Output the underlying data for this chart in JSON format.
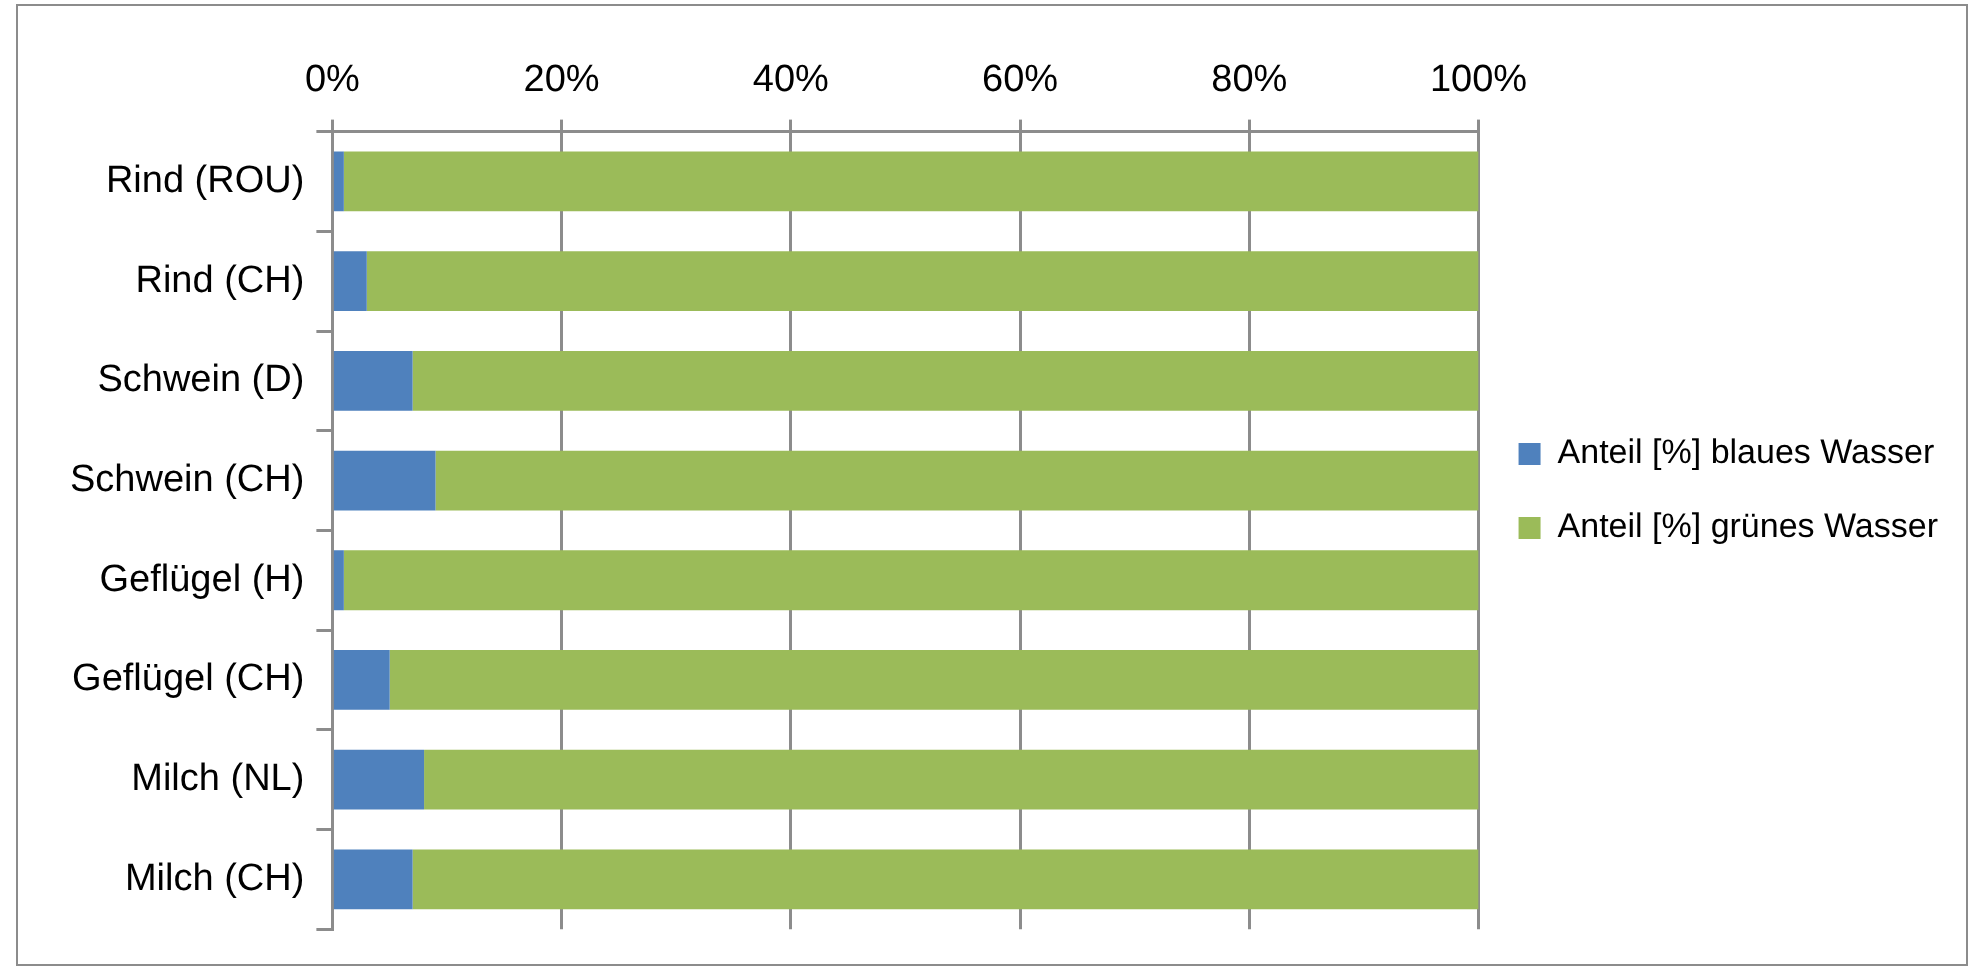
{
  "chart_data": {
    "type": "bar",
    "orientation": "horizontal",
    "stacked": true,
    "categories": [
      "Rind (ROU)",
      "Rind (CH)",
      "Schwein (D)",
      "Schwein (CH)",
      "Geflügel (H)",
      "Geflügel (CH)",
      "Milch (NL)",
      "Milch (CH)"
    ],
    "series": [
      {
        "name": "Anteil [%] blaues Wasser",
        "color": "#4f81bd",
        "values": [
          1,
          3,
          7,
          9,
          1,
          5,
          8,
          7
        ]
      },
      {
        "name": "Anteil [%] grünes Wasser",
        "color": "#9bbb59",
        "values": [
          99,
          97,
          93,
          91,
          99,
          95,
          92,
          93
        ]
      }
    ],
    "xlim": [
      0,
      100
    ],
    "xticks": [
      {
        "value": 0,
        "label": "0%"
      },
      {
        "value": 20,
        "label": "20%"
      },
      {
        "value": 40,
        "label": "40%"
      },
      {
        "value": 60,
        "label": "60%"
      },
      {
        "value": 80,
        "label": "80%"
      },
      {
        "value": 100,
        "label": "100%"
      }
    ],
    "grid": "x",
    "legend": "right"
  }
}
